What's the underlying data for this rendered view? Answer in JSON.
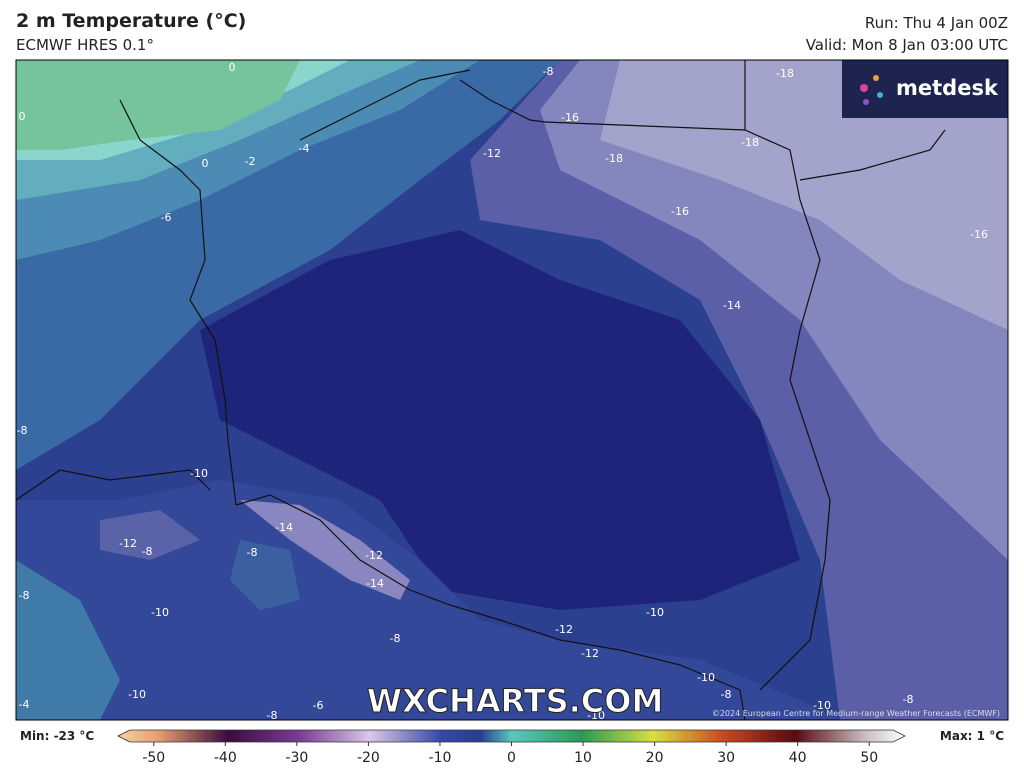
{
  "header": {
    "title": "2 m Temperature (°C)",
    "subtitle": "ECMWF HRES 0.1°",
    "run": "Run: Thu 4 Jan 00Z",
    "valid": "Valid: Mon 8 Jan 03:00 UTC"
  },
  "logo": "metdesk",
  "watermark": "WXCHARTS.COM",
  "copyright": "©2024 European Centre for Medium-range Weather Forecasts (ECMWF)",
  "map": {
    "contour_labels": [
      0,
      -8,
      -18,
      -16,
      0,
      -18,
      -18,
      0,
      -2,
      -4,
      -12,
      -6,
      -16,
      -16,
      -14,
      -8,
      -10,
      -14,
      -12,
      -8,
      -8,
      -12,
      -14,
      -8,
      -10,
      -10,
      -12,
      -8,
      -12,
      -10,
      -10,
      -4,
      -8,
      -8,
      -10,
      -8,
      -6,
      -10
    ]
  },
  "colorbar": {
    "min_label": "Min: -23 °C",
    "max_label": "Max: 1 °C",
    "range": [
      -55,
      55
    ],
    "ticks": [
      -50,
      -40,
      -30,
      -20,
      -10,
      0,
      10,
      20,
      30,
      40,
      50
    ]
  }
}
